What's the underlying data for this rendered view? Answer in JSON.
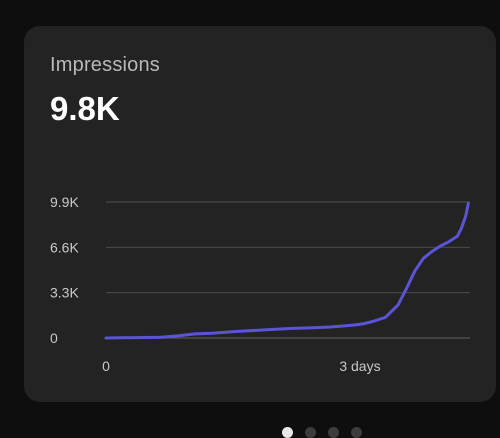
{
  "card": {
    "title": "Impressions",
    "value": "9.8K"
  },
  "pager": {
    "count": 4,
    "active_index": 0
  },
  "chart_data": {
    "type": "line",
    "y_ticks": [
      {
        "value": 0,
        "label": "0"
      },
      {
        "value": 3300,
        "label": "3.3K"
      },
      {
        "value": 6600,
        "label": "6.6K"
      },
      {
        "value": 9900,
        "label": "9.9K"
      }
    ],
    "x_ticks": [
      {
        "value": 0,
        "label": "0"
      },
      {
        "value": 3,
        "label": "3 days"
      }
    ],
    "xlim": [
      0,
      4.3
    ],
    "ylim": [
      0,
      9900
    ],
    "grid": true,
    "series_color": "#5b54d6",
    "series": [
      {
        "x": [
          0,
          0.65,
          0.85,
          1.05,
          1.25,
          1.55,
          1.9,
          2.2,
          2.45,
          2.65,
          2.8,
          2.95,
          3.05,
          3.15,
          3.3,
          3.45,
          3.55,
          3.65,
          3.75,
          3.85,
          3.95,
          4.05,
          4.15,
          4.2,
          4.25,
          4.28
        ],
        "y": [
          0,
          60,
          150,
          300,
          350,
          480,
          600,
          700,
          750,
          800,
          870,
          950,
          1050,
          1200,
          1500,
          2400,
          3600,
          4900,
          5800,
          6300,
          6700,
          7000,
          7400,
          8000,
          8900,
          9800
        ]
      }
    ]
  }
}
